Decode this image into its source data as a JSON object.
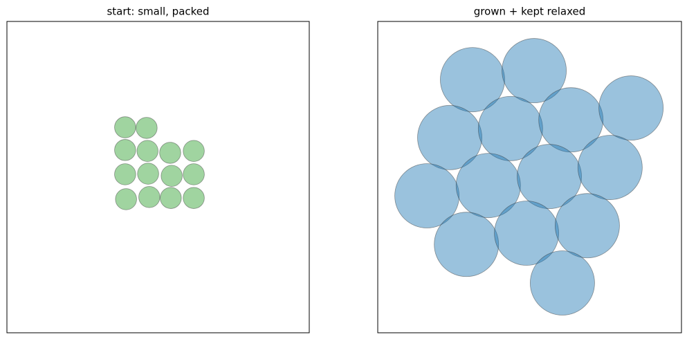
{
  "chart_data": [
    {
      "type": "scatter",
      "title": "start: small, packed",
      "color": "#2ca02c",
      "opacity": 0.45,
      "x": [
        3.91,
        4.62,
        3.91,
        4.65,
        5.4,
        6.18,
        3.91,
        4.67,
        5.45,
        6.18,
        3.94,
        4.71,
        5.42,
        6.18
      ],
      "y": [
        6.6,
        6.58,
        5.87,
        5.84,
        5.78,
        5.84,
        5.09,
        5.11,
        5.04,
        5.09,
        4.29,
        4.36,
        4.33,
        4.33
      ],
      "radius": 0.35,
      "xlim": [
        0,
        10
      ],
      "ylim": [
        0,
        10
      ]
    },
    {
      "type": "scatter",
      "title": "grown + kept relaxed",
      "color": "#1f77b4",
      "opacity": 0.45,
      "x": [
        3.12,
        5.15,
        2.37,
        4.37,
        6.36,
        8.34,
        1.62,
        3.64,
        5.65,
        7.65,
        2.92,
        4.9,
        6.9,
        6.08
      ],
      "y": [
        8.13,
        8.42,
        6.27,
        6.56,
        6.84,
        7.22,
        4.4,
        4.73,
        5.02,
        5.31,
        2.84,
        3.2,
        3.44,
        1.6
      ],
      "radius": 1.06,
      "xlim": [
        0,
        10
      ],
      "ylim": [
        0,
        10
      ]
    }
  ]
}
